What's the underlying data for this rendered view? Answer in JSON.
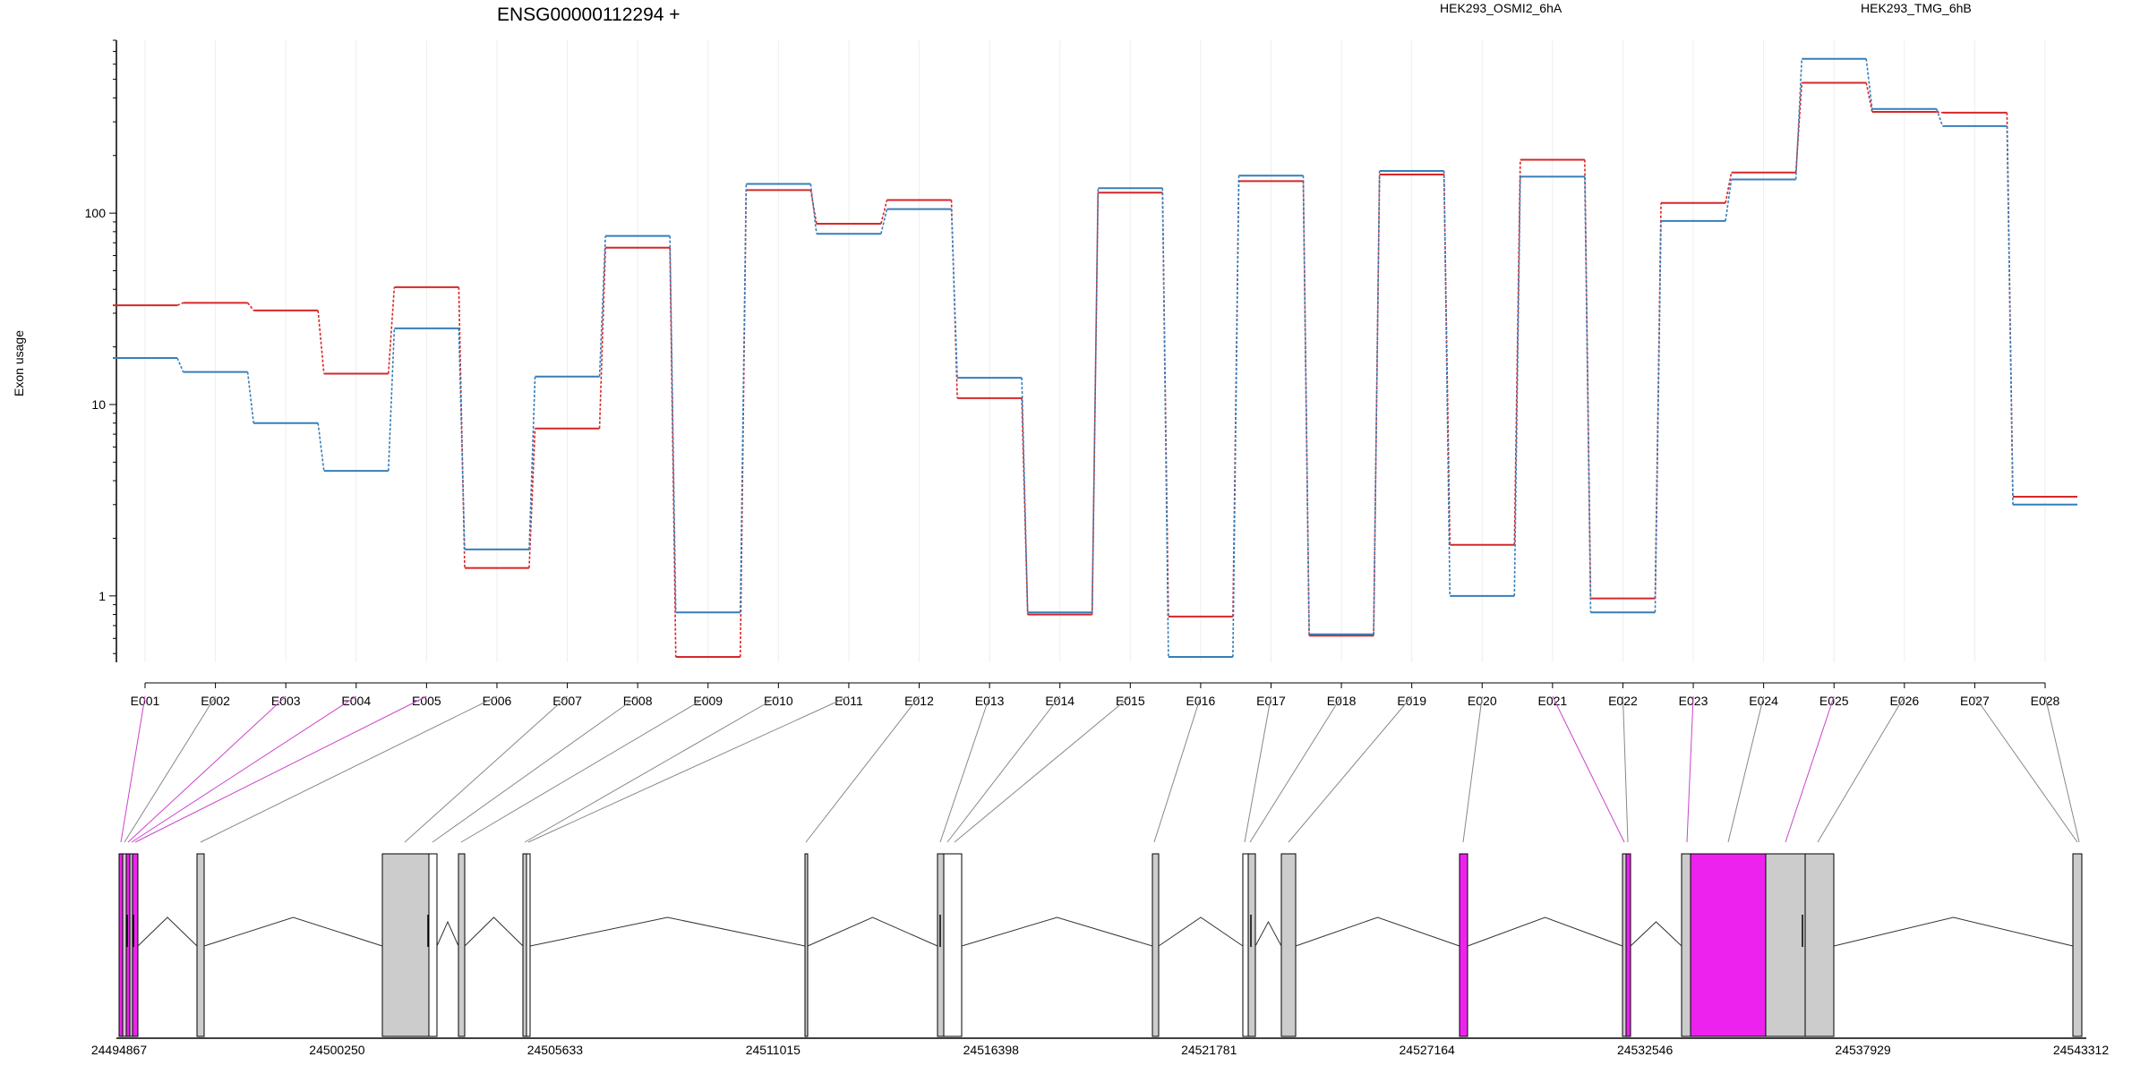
{
  "chart_data": {
    "type": "line",
    "title": "ENSG00000112294 +",
    "ylabel": "Exon usage",
    "yscale": "log",
    "ylim": [
      0.45,
      800
    ],
    "yticks": [
      1,
      10,
      100
    ],
    "ytick_labels": [
      "1",
      "10",
      "100"
    ],
    "categories": [
      "E001",
      "E002",
      "E003",
      "E004",
      "E005",
      "E006",
      "E007",
      "E008",
      "E009",
      "E010",
      "E011",
      "E012",
      "E013",
      "E014",
      "E015",
      "E016",
      "E017",
      "E018",
      "E019",
      "E020",
      "E021",
      "E022",
      "E023",
      "E024",
      "E025",
      "E026",
      "E027",
      "E028"
    ],
    "legend_position": "top",
    "series": [
      {
        "name": "HEK293_OSMI2_6hA",
        "color": "#d62728",
        "values": [
          33,
          34,
          31,
          14.5,
          41,
          1.4,
          7.5,
          66,
          0.48,
          132,
          88,
          117,
          10.8,
          0.8,
          128,
          0.78,
          147,
          0.62,
          159,
          1.85,
          190,
          0.97,
          113,
          163,
          480,
          338,
          335,
          3.3
        ]
      },
      {
        "name": "HEK293_TMG_6hB",
        "color": "#377eb8",
        "values": [
          17.5,
          14.8,
          8,
          4.5,
          25,
          1.75,
          14,
          76,
          0.82,
          142,
          78,
          105,
          13.8,
          0.82,
          135,
          0.48,
          157,
          0.63,
          166,
          1.0,
          155,
          0.82,
          91,
          150,
          640,
          350,
          285,
          3.0
        ]
      }
    ],
    "gene_track": {
      "coordinate_labels": [
        "24494867",
        "24500250",
        "24505633",
        "24511015",
        "24516398",
        "24521781",
        "24527164",
        "24532546",
        "24537929",
        "24543312"
      ],
      "highlight_color": "#ee22ee",
      "exon_color": "#cccccc"
    }
  }
}
